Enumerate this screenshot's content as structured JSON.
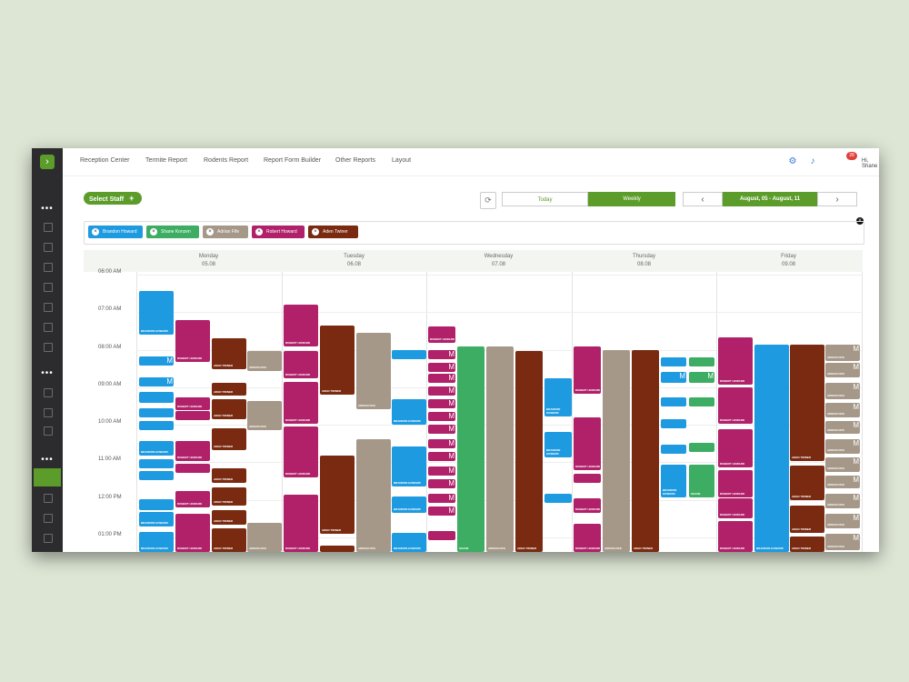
{
  "nav": {
    "items": [
      "Reception Center",
      "Termite Report",
      "Rodents Report",
      "Report Form Builder",
      "Other Reports",
      "Layout"
    ]
  },
  "header": {
    "notif_count": "28",
    "user_name": "Hi, Shane",
    "avatar_initial": "S"
  },
  "controls": {
    "select_staff": "Select Staff",
    "select_staff_icon": "+",
    "today": "Today",
    "weekly": "Weekly",
    "date_range": "August, 05 - August, 11",
    "prev": "‹",
    "next": "›",
    "sync_icon": "⟳",
    "close_icon": "×"
  },
  "staff_chips": [
    {
      "name": "Brandon Howard",
      "color": "#1e9be0"
    },
    {
      "name": "Shane Konzen",
      "color": "#3cad63"
    },
    {
      "name": "Adrian Fife",
      "color": "#a59888"
    },
    {
      "name": "Robert Howard",
      "color": "#b0216a"
    },
    {
      "name": "Aden Twiner",
      "color": "#7a2a10"
    }
  ],
  "days": [
    {
      "name": "Monday",
      "date": "05.08"
    },
    {
      "name": "Tuesday",
      "date": "06.08"
    },
    {
      "name": "Wednesday",
      "date": "07.08"
    },
    {
      "name": "Thursday",
      "date": "08.08"
    },
    {
      "name": "Friday",
      "date": "09.08"
    }
  ],
  "times": [
    "06:00 AM",
    "07:00 AM",
    "08:00 AM",
    "09:00 AM",
    "10:00 AM",
    "11:00 AM",
    "12:00 PM",
    "01:00 PM"
  ],
  "colors": {
    "brandon": "#1e9be0",
    "shane": "#3cad63",
    "adrian": "#a59888",
    "robert": "#b0216a",
    "aden": "#7a2a10",
    "accent": "#5c9c2a"
  },
  "event_tags": {
    "brandon": "BRANDON HOWARD",
    "shane": "SHANE",
    "adrian": "ADRIAN FIFE",
    "robert": "ROBERT HOWARD",
    "aden": "ADEN TWINER"
  }
}
